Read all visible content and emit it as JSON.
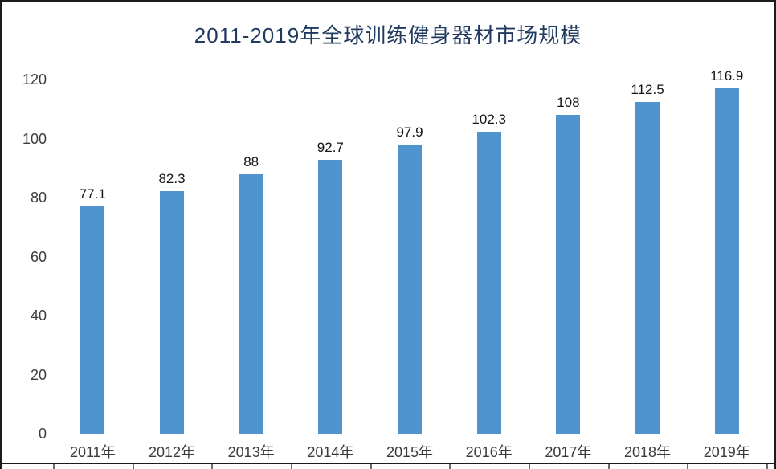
{
  "chart_data": {
    "type": "bar",
    "title": "2011-2019年全球训练健身器材市场规模",
    "categories": [
      "2011年",
      "2012年",
      "2013年",
      "2014年",
      "2015年",
      "2016年",
      "2017年",
      "2018年",
      "2019年"
    ],
    "values": [
      77.1,
      82.3,
      88,
      92.7,
      97.9,
      102.3,
      108,
      112.5,
      116.9
    ],
    "value_labels": [
      "77.1",
      "82.3",
      "88",
      "92.7",
      "97.9",
      "102.3",
      "108",
      "112.5",
      "116.9"
    ],
    "xlabel": "",
    "ylabel": "",
    "ylim": [
      0,
      120
    ],
    "yticks": [
      0,
      20,
      40,
      60,
      80,
      100,
      120
    ],
    "grid": false,
    "legend": "none",
    "colors": {
      "bar": "#4E94CE",
      "title": "#203A60",
      "axis_labels": "#3b3b3b",
      "value_labels": "#141414",
      "border": "#1b1b1b"
    }
  }
}
